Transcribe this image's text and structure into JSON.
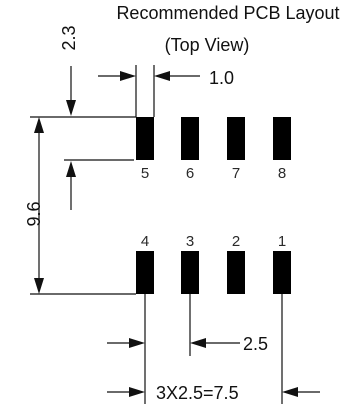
{
  "title": {
    "line1": "Recommended PCB Layout",
    "line2": "(Top View)"
  },
  "dimensions": {
    "vertical_offset": "2.3",
    "pad_width": "1.0",
    "row_spacing": "9.6",
    "pitch": "2.5",
    "total_pitch": "3X2.5=7.5"
  },
  "pins": {
    "top_row": [
      "5",
      "6",
      "7",
      "8"
    ],
    "bottom_row": [
      "4",
      "3",
      "2",
      "1"
    ]
  },
  "colors": {
    "pad": "#000000",
    "line": "#111111"
  }
}
